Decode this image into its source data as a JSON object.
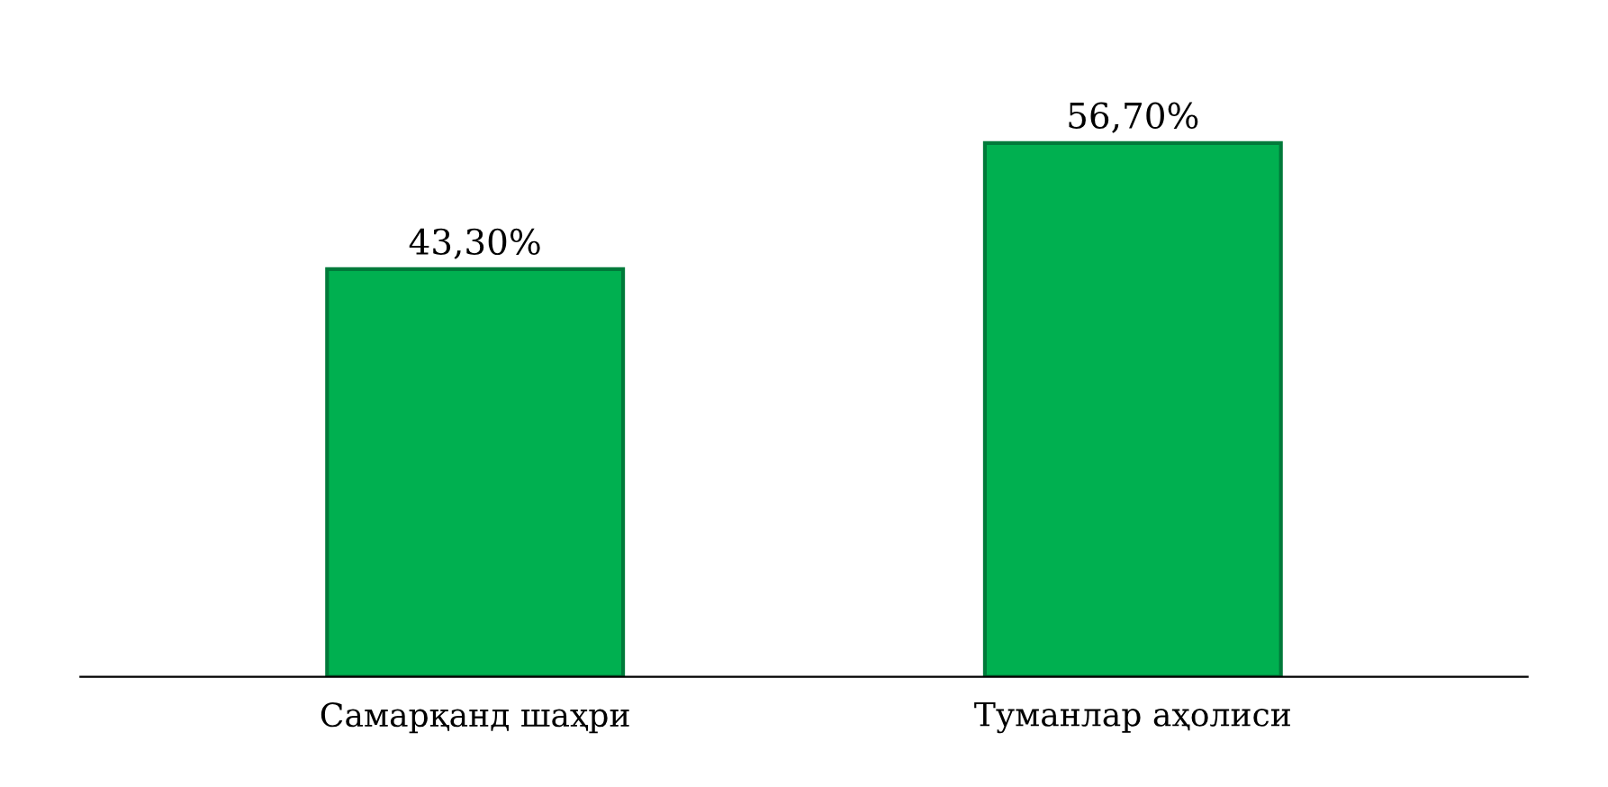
{
  "chart_data": {
    "type": "bar",
    "categories": [
      "Самарқанд шаҳри",
      "Туманлар аҳолиси"
    ],
    "values": [
      43.3,
      56.7
    ],
    "value_labels": [
      "43,30%",
      "56,70%"
    ],
    "color": "#00b050",
    "grid": false,
    "legend": false
  }
}
